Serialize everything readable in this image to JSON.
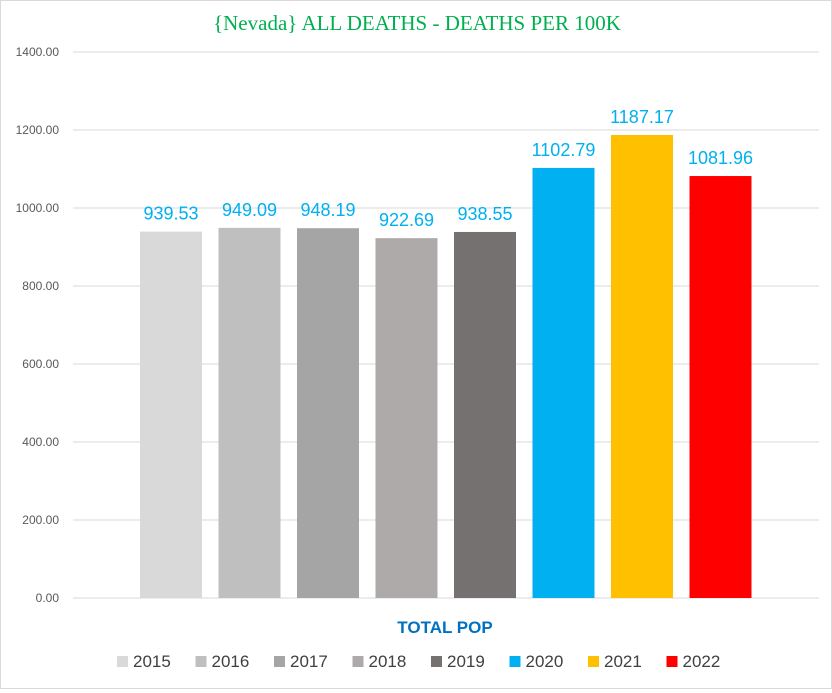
{
  "chart_data": {
    "type": "bar",
    "title": "{Nevada}  ALL DEATHS - DEATHS PER 100K",
    "xlabel": "TOTAL POP",
    "ylabel": "",
    "categories": [
      "TOTAL POP"
    ],
    "ylim": [
      0,
      1400
    ],
    "yticks": [
      0,
      200,
      400,
      600,
      800,
      1000,
      1200,
      1400
    ],
    "tick_format_decimals": 2,
    "grid": true,
    "legend": "bottom",
    "series": [
      {
        "name": "2015",
        "values": [
          939.53
        ],
        "color": "#d9d9d9"
      },
      {
        "name": "2016",
        "values": [
          949.09
        ],
        "color": "#bfbfbf"
      },
      {
        "name": "2017",
        "values": [
          948.19
        ],
        "color": "#a5a5a5"
      },
      {
        "name": "2018",
        "values": [
          922.69
        ],
        "color": "#aeaaaa"
      },
      {
        "name": "2019",
        "values": [
          938.55
        ],
        "color": "#767171"
      },
      {
        "name": "2020",
        "values": [
          1102.79
        ],
        "color": "#00b0f0"
      },
      {
        "name": "2021",
        "values": [
          1187.17
        ],
        "color": "#ffc000"
      },
      {
        "name": "2022",
        "values": [
          1081.96
        ],
        "color": "#ff0000"
      }
    ]
  },
  "colors": {
    "title": "#00b050",
    "data_label": "#00b0f0",
    "xlabel": "#0070c0",
    "grid": "#d9d9d9"
  }
}
